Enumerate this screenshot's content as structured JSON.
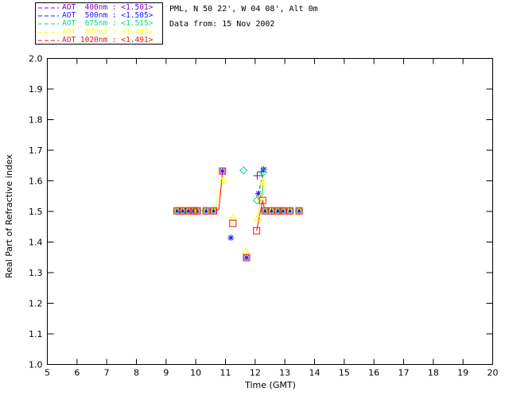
{
  "header": {
    "line1": "PML, N 50 22', W 04 08', Alt 0m",
    "line2": "Data from: 15 Nov 2002"
  },
  "axis": {
    "x_label": "Time (GMT)",
    "y_label": "Real Part of Refractive index"
  },
  "chart_data": {
    "type": "scatter",
    "xlabel": "Time (GMT)",
    "ylabel": "Real Part of Refractive index",
    "xlim": [
      5,
      20
    ],
    "ylim": [
      1.0,
      2.0
    ],
    "xticks": [
      "5",
      "6",
      "7",
      "8",
      "9",
      "10",
      "11",
      "12",
      "13",
      "14",
      "15",
      "16",
      "17",
      "18",
      "19",
      "20"
    ],
    "yticks": [
      "1.0",
      "1.1",
      "1.2",
      "1.3",
      "1.4",
      "1.5",
      "1.6",
      "1.7",
      "1.8",
      "1.9",
      "2.0"
    ],
    "grid": false,
    "legend_position": "top-left-outside",
    "shared_row": {
      "value": 1.502,
      "times": [
        9.37,
        9.56,
        9.75,
        9.92,
        10.05,
        10.35,
        10.6,
        12.33,
        12.55,
        12.76,
        12.94,
        13.17,
        13.48
      ]
    },
    "series": [
      {
        "id": "400nm",
        "legend": "AOT  400nm : <1.501>",
        "mean_value": "<1.501>",
        "color": "#8000C8",
        "marker": "plus",
        "points": [
          [
            12.21,
            1.63
          ],
          [
            12.07,
            1.617
          ]
        ],
        "lines": []
      },
      {
        "id": "500nm",
        "legend": "AOT  500nm : <1.505>",
        "mean_value": "<1.505>",
        "color": "#1A1AFF",
        "marker": "asterisk",
        "points": [
          [
            10.9,
            1.632
          ],
          [
            11.18,
            1.414
          ],
          [
            11.71,
            1.349
          ],
          [
            12.29,
            1.638
          ],
          [
            12.11,
            1.558
          ]
        ],
        "lines": [
          {
            "dash": true,
            "pts": [
              [
                12.29,
                1.638
              ],
              [
                12.11,
                1.558
              ]
            ]
          }
        ]
      },
      {
        "id": "675nm",
        "legend": "AOT  675nm : <1.515>",
        "mean_value": "<1.515>",
        "color": "#00E080",
        "marker": "diamond",
        "points": [
          [
            11.61,
            1.634
          ],
          [
            12.27,
            1.628
          ],
          [
            12.06,
            1.536
          ]
        ],
        "lines": [
          {
            "dash": false,
            "pts": [
              [
                12.27,
                1.628
              ],
              [
                12.255,
                1.555
              ],
              [
                12.06,
                1.536
              ]
            ]
          }
        ]
      },
      {
        "id": "870nm",
        "legend": "AOT  870nm : <1.499>",
        "mean_value": "<1.499>",
        "color": "#FFFF00",
        "marker": "triangle",
        "points": [
          [
            10.92,
            1.604
          ],
          [
            11.25,
            1.479
          ],
          [
            11.69,
            1.37
          ],
          [
            12.26,
            1.595
          ],
          [
            12.18,
            1.547
          ],
          [
            12.1,
            1.48
          ]
        ],
        "lines": [
          {
            "dash": false,
            "pts": [
              [
                10.62,
                1.503
              ],
              [
                10.92,
                1.6
              ]
            ]
          },
          {
            "dash": false,
            "pts": [
              [
                12.285,
                1.625
              ],
              [
                12.26,
                1.595
              ],
              [
                12.18,
                1.547
              ],
              [
                12.1,
                1.48
              ]
            ]
          }
        ]
      },
      {
        "id": "1020nm",
        "legend": "AOT 1020nm : <1.491>",
        "mean_value": "<1.491>",
        "color": "#EE1111",
        "marker": "square",
        "points": [
          [
            10.9,
            1.632
          ],
          [
            11.25,
            1.461
          ],
          [
            11.71,
            1.349
          ],
          [
            12.25,
            1.536
          ],
          [
            12.05,
            1.437
          ]
        ],
        "lines": [
          {
            "dash": false,
            "pts": [
              [
                9.37,
                1.502
              ],
              [
                10.05,
                1.502
              ]
            ]
          },
          {
            "dash": false,
            "pts": [
              [
                10.35,
                1.502
              ],
              [
                10.6,
                1.502
              ]
            ]
          },
          {
            "dash": false,
            "pts": [
              [
                12.33,
                1.502
              ],
              [
                12.94,
                1.502
              ]
            ]
          },
          {
            "dash": false,
            "pts": [
              [
                10.6,
                1.502
              ],
              [
                10.78,
                1.507
              ],
              [
                10.9,
                1.632
              ]
            ]
          },
          {
            "dash": false,
            "pts": [
              [
                12.25,
                1.536
              ],
              [
                12.05,
                1.437
              ]
            ]
          },
          {
            "dash": false,
            "pts": [
              [
                12.25,
                1.536
              ],
              [
                12.33,
                1.502
              ]
            ]
          }
        ]
      }
    ]
  }
}
